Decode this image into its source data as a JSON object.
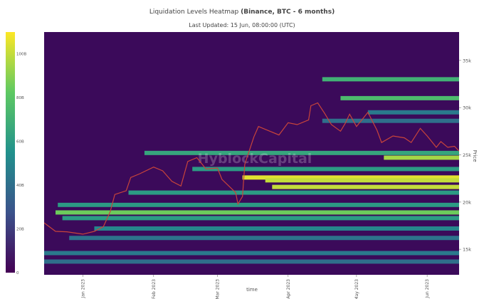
{
  "header": {
    "title_main": "Liquidation Levels Heatmap ",
    "title_bold": "(Binance, BTC - 6 months)",
    "subtitle": "Last Updated: 15 Jun, 08:00:00 (UTC)"
  },
  "watermark": "HyblockCapital",
  "colors": {
    "background": "#3b0a5a",
    "price_line": "#c8443a",
    "scale": [
      "#440154",
      "#3b528b",
      "#21918c",
      "#5ec962",
      "#fde725"
    ]
  },
  "chart_data": {
    "type": "heatmap",
    "title": "Liquidation Levels Heatmap (Binance, BTC - 6 months)",
    "subtitle": "Last Updated: 15 Jun, 08:00:00 (UTC)",
    "xlabel": "time",
    "ylabel": "Price",
    "x_ticks": [
      "Jan 2023",
      "Feb 2023",
      "Mar 2023",
      "Apr 2023",
      "May 2023",
      "Jun 2023"
    ],
    "y_ticks": [
      "15k",
      "20k",
      "25k",
      "30k",
      "35k"
    ],
    "xlim": [
      "2022-12-15",
      "2023-06-15"
    ],
    "ylim": [
      12300,
      38000
    ],
    "colorbar": {
      "ticks": [
        "0",
        "20B",
        "40B",
        "60B",
        "80B",
        "100B"
      ],
      "range": [
        0,
        110
      ]
    },
    "price_series": [
      [
        "2022-12-15",
        17800
      ],
      [
        "2022-12-20",
        16900
      ],
      [
        "2022-12-25",
        16850
      ],
      [
        "2023-01-01",
        16600
      ],
      [
        "2023-01-06",
        16900
      ],
      [
        "2023-01-10",
        17400
      ],
      [
        "2023-01-13",
        19000
      ],
      [
        "2023-01-15",
        20800
      ],
      [
        "2023-01-20",
        21200
      ],
      [
        "2023-01-22",
        22600
      ],
      [
        "2023-01-26",
        23000
      ],
      [
        "2023-02-01",
        23700
      ],
      [
        "2023-02-05",
        23300
      ],
      [
        "2023-02-09",
        22200
      ],
      [
        "2023-02-13",
        21700
      ],
      [
        "2023-02-16",
        24300
      ],
      [
        "2023-02-20",
        24700
      ],
      [
        "2023-02-24",
        23500
      ],
      [
        "2023-03-01",
        23600
      ],
      [
        "2023-03-03",
        22400
      ],
      [
        "2023-03-09",
        21000
      ],
      [
        "2023-03-10",
        19800
      ],
      [
        "2023-03-12",
        20600
      ],
      [
        "2023-03-13",
        24000
      ],
      [
        "2023-03-17",
        26900
      ],
      [
        "2023-03-19",
        28000
      ],
      [
        "2023-03-24",
        27500
      ],
      [
        "2023-03-28",
        27100
      ],
      [
        "2023-04-01",
        28400
      ],
      [
        "2023-04-05",
        28200
      ],
      [
        "2023-04-10",
        28700
      ],
      [
        "2023-04-11",
        30200
      ],
      [
        "2023-04-14",
        30500
      ],
      [
        "2023-04-17",
        29400
      ],
      [
        "2023-04-20",
        28200
      ],
      [
        "2023-04-24",
        27500
      ],
      [
        "2023-04-26",
        28300
      ],
      [
        "2023-04-28",
        29300
      ],
      [
        "2023-05-01",
        28000
      ],
      [
        "2023-05-06",
        29500
      ],
      [
        "2023-05-10",
        27600
      ],
      [
        "2023-05-12",
        26300
      ],
      [
        "2023-05-17",
        27000
      ],
      [
        "2023-05-22",
        26800
      ],
      [
        "2023-05-25",
        26300
      ],
      [
        "2023-05-29",
        27800
      ],
      [
        "2023-06-01",
        27000
      ],
      [
        "2023-06-05",
        25800
      ],
      [
        "2023-06-07",
        26400
      ],
      [
        "2023-06-10",
        25800
      ],
      [
        "2023-06-13",
        25900
      ],
      [
        "2023-06-15",
        25400
      ]
    ],
    "liquidation_bands": [
      {
        "price": 33000,
        "start": "2023-04-16",
        "value": 70
      },
      {
        "price": 31000,
        "start": "2023-04-24",
        "value": 75
      },
      {
        "price": 29500,
        "start": "2023-05-06",
        "value": 45
      },
      {
        "price": 28600,
        "start": "2023-04-16",
        "value": 40
      },
      {
        "price": 25200,
        "start": "2023-01-28",
        "value": 65
      },
      {
        "price": 24700,
        "start": "2023-05-13",
        "value": 95
      },
      {
        "price": 23500,
        "start": "2023-02-18",
        "value": 60
      },
      {
        "price": 22600,
        "start": "2023-03-12",
        "value": 105
      },
      {
        "price": 22300,
        "start": "2023-03-22",
        "value": 100
      },
      {
        "price": 21600,
        "start": "2023-03-25",
        "value": 100
      },
      {
        "price": 21000,
        "start": "2023-01-21",
        "value": 60
      },
      {
        "price": 19700,
        "start": "2022-12-21",
        "value": 60
      },
      {
        "price": 18900,
        "start": "2022-12-20",
        "value": 85
      },
      {
        "price": 18300,
        "start": "2022-12-23",
        "value": 60
      },
      {
        "price": 17200,
        "start": "2023-01-06",
        "value": 50
      },
      {
        "price": 16200,
        "start": "2022-12-26",
        "value": 42
      },
      {
        "price": 14600,
        "start": "2022-12-15",
        "value": 45
      },
      {
        "price": 13700,
        "start": "2022-12-15",
        "value": 40
      }
    ]
  }
}
